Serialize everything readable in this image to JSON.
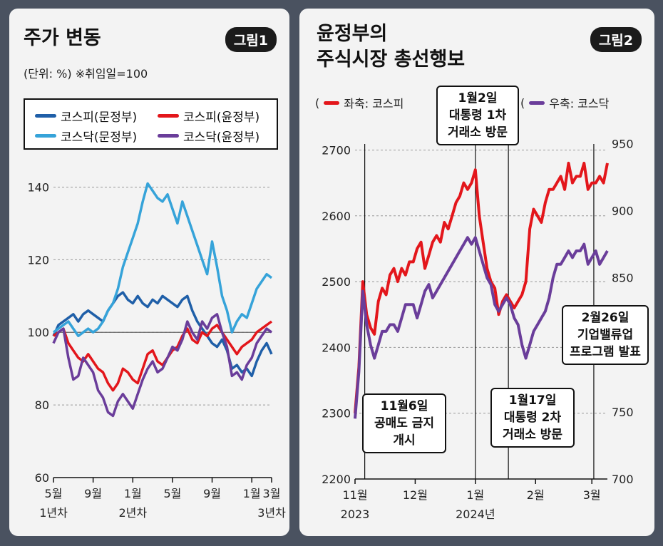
{
  "panel1": {
    "title": "주가 변동",
    "badge": "그림1",
    "unit": "(단위: %) ※취임일=100",
    "chart_data": {
      "type": "line",
      "ylim": [
        60,
        145
      ],
      "yticks": [
        60,
        80,
        100,
        120,
        140
      ],
      "reference_line": 100,
      "xticks": [
        {
          "pos": 0,
          "label": "5월",
          "sub": "1년차"
        },
        {
          "pos": 4,
          "label": "9월",
          "sub": ""
        },
        {
          "pos": 8,
          "label": "1월",
          "sub": "2년차"
        },
        {
          "pos": 12,
          "label": "5월",
          "sub": ""
        },
        {
          "pos": 16,
          "label": "9월",
          "sub": ""
        },
        {
          "pos": 20,
          "label": "1월",
          "sub": ""
        },
        {
          "pos": 22,
          "label": "3월",
          "sub": "3년차"
        }
      ],
      "xlim": [
        0,
        22
      ],
      "series": [
        {
          "name": "코스피(문정부)",
          "color": "#1f5fa8",
          "x": [
            0,
            0.5,
            1,
            1.5,
            2,
            2.5,
            3,
            3.5,
            4,
            4.5,
            5,
            5.5,
            6,
            6.5,
            7,
            7.5,
            8,
            8.5,
            9,
            9.5,
            10,
            10.5,
            11,
            11.5,
            12,
            12.5,
            13,
            13.5,
            14,
            14.5,
            15,
            15.5,
            16,
            16.5,
            17,
            17.5,
            18,
            18.5,
            19,
            19.5,
            20,
            20.5,
            21,
            21.5,
            22
          ],
          "values": [
            99,
            102,
            103,
            104,
            105,
            103,
            105,
            106,
            105,
            104,
            103,
            106,
            108,
            110,
            111,
            109,
            108,
            110,
            108,
            107,
            109,
            108,
            110,
            109,
            108,
            107,
            109,
            110,
            106,
            103,
            101,
            99,
            97,
            96,
            98,
            95,
            90,
            91,
            89,
            90,
            88,
            92,
            95,
            97,
            94
          ]
        },
        {
          "name": "코스피(윤정부)",
          "color": "#e3161b",
          "x": [
            0,
            0.5,
            1,
            1.5,
            2,
            2.5,
            3,
            3.5,
            4,
            4.5,
            5,
            5.5,
            6,
            6.5,
            7,
            7.5,
            8,
            8.5,
            9,
            9.5,
            10,
            10.5,
            11,
            11.5,
            12,
            12.5,
            13,
            13.5,
            14,
            14.5,
            15,
            15.5,
            16,
            16.5,
            17,
            17.5,
            18,
            18.5,
            19,
            19.5,
            20,
            20.5,
            21,
            21.5,
            22
          ],
          "values": [
            99,
            100,
            101,
            97,
            95,
            93,
            92,
            94,
            92,
            90,
            89,
            86,
            84,
            86,
            90,
            89,
            87,
            86,
            90,
            94,
            95,
            92,
            91,
            93,
            95,
            96,
            99,
            101,
            98,
            97,
            100,
            99,
            101,
            102,
            100,
            98,
            96,
            94,
            96,
            97,
            98,
            100,
            101,
            102,
            103
          ]
        },
        {
          "name": "코스닥(문정부)",
          "color": "#36a3d9",
          "x": [
            0,
            0.5,
            1,
            1.5,
            2,
            2.5,
            3,
            3.5,
            4,
            4.5,
            5,
            5.5,
            6,
            6.5,
            7,
            7.5,
            8,
            8.5,
            9,
            9.5,
            10,
            10.5,
            11,
            11.5,
            12,
            12.5,
            13,
            13.5,
            14,
            14.5,
            15,
            15.5,
            16,
            16.5,
            17,
            17.5,
            18,
            18.5,
            19,
            19.5,
            20,
            20.5,
            21,
            21.5,
            22
          ],
          "values": [
            100,
            101,
            102,
            103,
            101,
            99,
            100,
            101,
            100,
            101,
            103,
            106,
            108,
            112,
            118,
            122,
            126,
            130,
            136,
            141,
            139,
            137,
            136,
            138,
            134,
            130,
            136,
            132,
            128,
            124,
            120,
            116,
            125,
            118,
            110,
            106,
            100,
            103,
            105,
            104,
            108,
            112,
            114,
            116,
            115
          ]
        },
        {
          "name": "코스닥(윤정부)",
          "color": "#6a3d9a",
          "x": [
            0,
            0.5,
            1,
            1.5,
            2,
            2.5,
            3,
            3.5,
            4,
            4.5,
            5,
            5.5,
            6,
            6.5,
            7,
            7.5,
            8,
            8.5,
            9,
            9.5,
            10,
            10.5,
            11,
            11.5,
            12,
            12.5,
            13,
            13.5,
            14,
            14.5,
            15,
            15.5,
            16,
            16.5,
            17,
            17.5,
            18,
            18.5,
            19,
            19.5,
            20,
            20.5,
            21,
            21.5,
            22
          ],
          "values": [
            97,
            100,
            101,
            93,
            87,
            88,
            93,
            91,
            89,
            84,
            82,
            78,
            77,
            81,
            83,
            81,
            79,
            83,
            87,
            90,
            92,
            89,
            90,
            93,
            96,
            95,
            98,
            103,
            100,
            98,
            103,
            101,
            104,
            105,
            100,
            96,
            88,
            89,
            87,
            91,
            93,
            97,
            99,
            101,
            100
          ]
        }
      ]
    }
  },
  "panel2": {
    "title_line1": "윤정부의",
    "title_line2": "주식시장 총선행보",
    "badge": "그림2",
    "legend_left": "좌축: 코스피",
    "legend_right": "우축: 코스닥",
    "chart_data": {
      "type": "line",
      "ylim_left": [
        2200,
        2720
      ],
      "yticks_left": [
        2200,
        2300,
        2400,
        2500,
        2600,
        2700
      ],
      "ylim_right": [
        700,
        955
      ],
      "yticks_right": [
        700,
        750,
        800,
        850,
        900,
        950
      ],
      "xlim": [
        0,
        130
      ],
      "xticks": [
        {
          "pos": 0,
          "label": "11월",
          "sub": "2023"
        },
        {
          "pos": 31,
          "label": "12월",
          "sub": ""
        },
        {
          "pos": 62,
          "label": "1월",
          "sub": "2024년"
        },
        {
          "pos": 93,
          "label": "2월",
          "sub": ""
        },
        {
          "pos": 122,
          "label": "3월",
          "sub": ""
        }
      ],
      "series": [
        {
          "name": "코스피",
          "color": "#e3161b",
          "axis": "left",
          "x": [
            0,
            2,
            4,
            6,
            8,
            10,
            12,
            14,
            16,
            18,
            20,
            22,
            24,
            26,
            28,
            30,
            32,
            34,
            36,
            38,
            40,
            42,
            44,
            46,
            48,
            50,
            52,
            54,
            56,
            58,
            60,
            62,
            64,
            66,
            68,
            70,
            72,
            74,
            76,
            78,
            80,
            82,
            84,
            86,
            88,
            90,
            92,
            94,
            96,
            98,
            100,
            102,
            104,
            106,
            108,
            110,
            112,
            114,
            116,
            118,
            120,
            122,
            124,
            126,
            128,
            130
          ],
          "values": [
            2300,
            2370,
            2500,
            2450,
            2430,
            2420,
            2470,
            2490,
            2480,
            2510,
            2520,
            2500,
            2520,
            2510,
            2530,
            2530,
            2550,
            2560,
            2520,
            2540,
            2560,
            2570,
            2560,
            2590,
            2580,
            2600,
            2620,
            2630,
            2650,
            2640,
            2650,
            2670,
            2600,
            2560,
            2520,
            2500,
            2490,
            2450,
            2470,
            2480,
            2470,
            2460,
            2470,
            2480,
            2500,
            2580,
            2610,
            2600,
            2590,
            2620,
            2640,
            2640,
            2650,
            2660,
            2640,
            2680,
            2650,
            2660,
            2660,
            2680,
            2640,
            2650,
            2650,
            2660,
            2650,
            2680
          ]
        },
        {
          "name": "코스닥",
          "color": "#6a3d9a",
          "axis": "right",
          "x": [
            0,
            2,
            4,
            6,
            8,
            10,
            12,
            14,
            16,
            18,
            20,
            22,
            24,
            26,
            28,
            30,
            32,
            34,
            36,
            38,
            40,
            42,
            44,
            46,
            48,
            50,
            52,
            54,
            56,
            58,
            60,
            62,
            64,
            66,
            68,
            70,
            72,
            74,
            76,
            78,
            80,
            82,
            84,
            86,
            88,
            90,
            92,
            94,
            96,
            98,
            100,
            102,
            104,
            106,
            108,
            110,
            112,
            114,
            116,
            118,
            120,
            122,
            124,
            126,
            128,
            130
          ],
          "values": [
            745,
            780,
            840,
            815,
            800,
            790,
            800,
            810,
            810,
            815,
            815,
            810,
            820,
            830,
            830,
            830,
            820,
            830,
            840,
            845,
            835,
            840,
            845,
            850,
            855,
            860,
            865,
            870,
            875,
            880,
            875,
            880,
            870,
            860,
            850,
            845,
            830,
            825,
            830,
            835,
            830,
            820,
            815,
            800,
            790,
            800,
            810,
            815,
            820,
            825,
            835,
            850,
            860,
            860,
            865,
            870,
            865,
            870,
            870,
            875,
            860,
            865,
            870,
            860,
            865,
            870
          ]
        }
      ],
      "vlines": [
        5,
        62,
        79,
        123
      ],
      "annotations": [
        {
          "line1": "1월2일",
          "line2": "대통령 1차",
          "line3": "거래소 방문"
        },
        {
          "line1": "11월6일",
          "line2": "공매도 금지",
          "line3": "개시"
        },
        {
          "line1": "1월17일",
          "line2": "대통령 2차",
          "line3": "거래소 방문"
        },
        {
          "line1": "2월26일",
          "line2": "기업밸류업",
          "line3": "프로그램 발표"
        }
      ]
    }
  }
}
